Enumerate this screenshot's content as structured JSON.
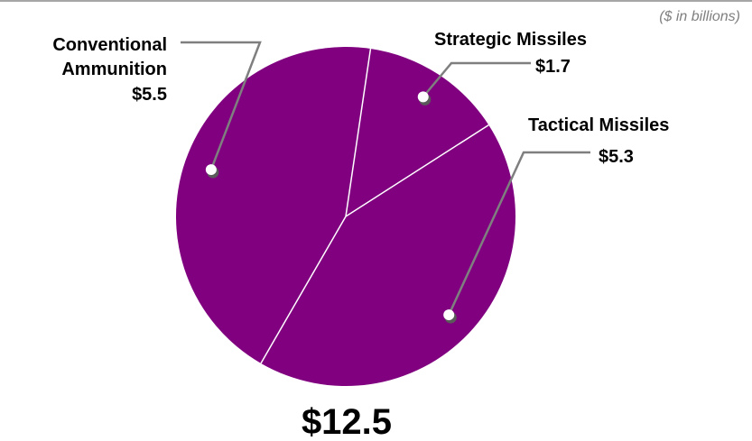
{
  "chart_data": {
    "type": "pie",
    "units_note": "($ in billions)",
    "total_label": "$12.5",
    "total": 12.5,
    "slices": [
      {
        "name_lines": [
          "Conventional",
          "Ammunition"
        ],
        "value": 5.5,
        "value_label": "$5.5"
      },
      {
        "name_lines": [
          "Strategic Missiles"
        ],
        "value": 1.7,
        "value_label": "$1.7"
      },
      {
        "name_lines": [
          "Tactical Missiles"
        ],
        "value": 5.3,
        "value_label": "$5.3"
      }
    ],
    "colors": {
      "slice": "#800080",
      "separator": "#ffffff",
      "leader": "#7f7f7f",
      "top_rule": "#a6a6a6"
    }
  }
}
